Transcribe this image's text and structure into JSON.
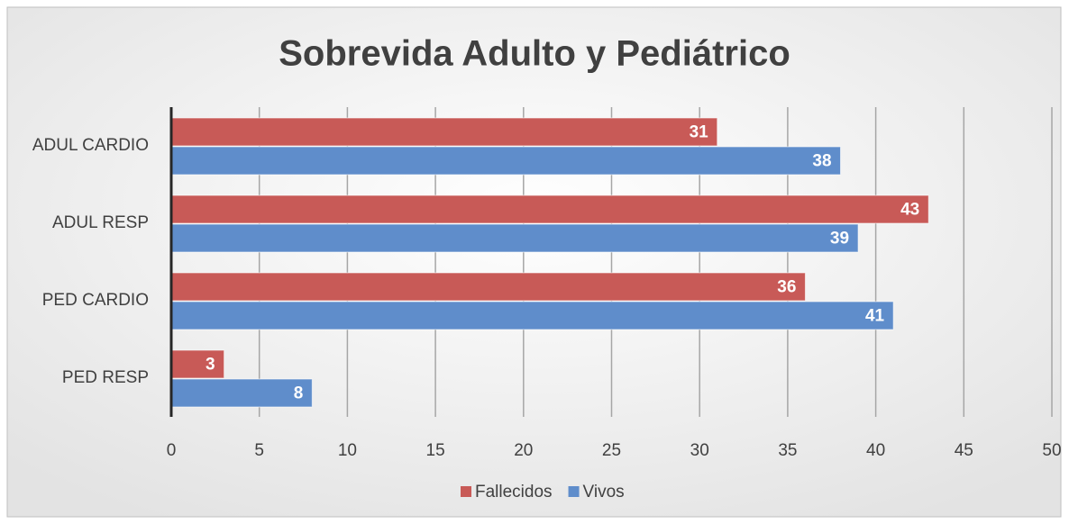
{
  "chart_data": {
    "type": "bar",
    "orientation": "horizontal",
    "title": "Sobrevida Adulto y Pediátrico",
    "categories": [
      "ADUL CARDIO",
      "ADUL RESP",
      "PED CARDIO",
      "PED RESP"
    ],
    "series": [
      {
        "name": "Fallecidos",
        "color": "#c85a57",
        "values": [
          31,
          43,
          36,
          3
        ]
      },
      {
        "name": "Vivos",
        "color": "#5f8dcb",
        "values": [
          38,
          39,
          41,
          8
        ]
      }
    ],
    "xlim": [
      0,
      50
    ],
    "xticks": [
      0,
      5,
      10,
      15,
      20,
      25,
      30,
      35,
      40,
      45,
      50
    ],
    "grid": true,
    "legend": "bottom"
  }
}
